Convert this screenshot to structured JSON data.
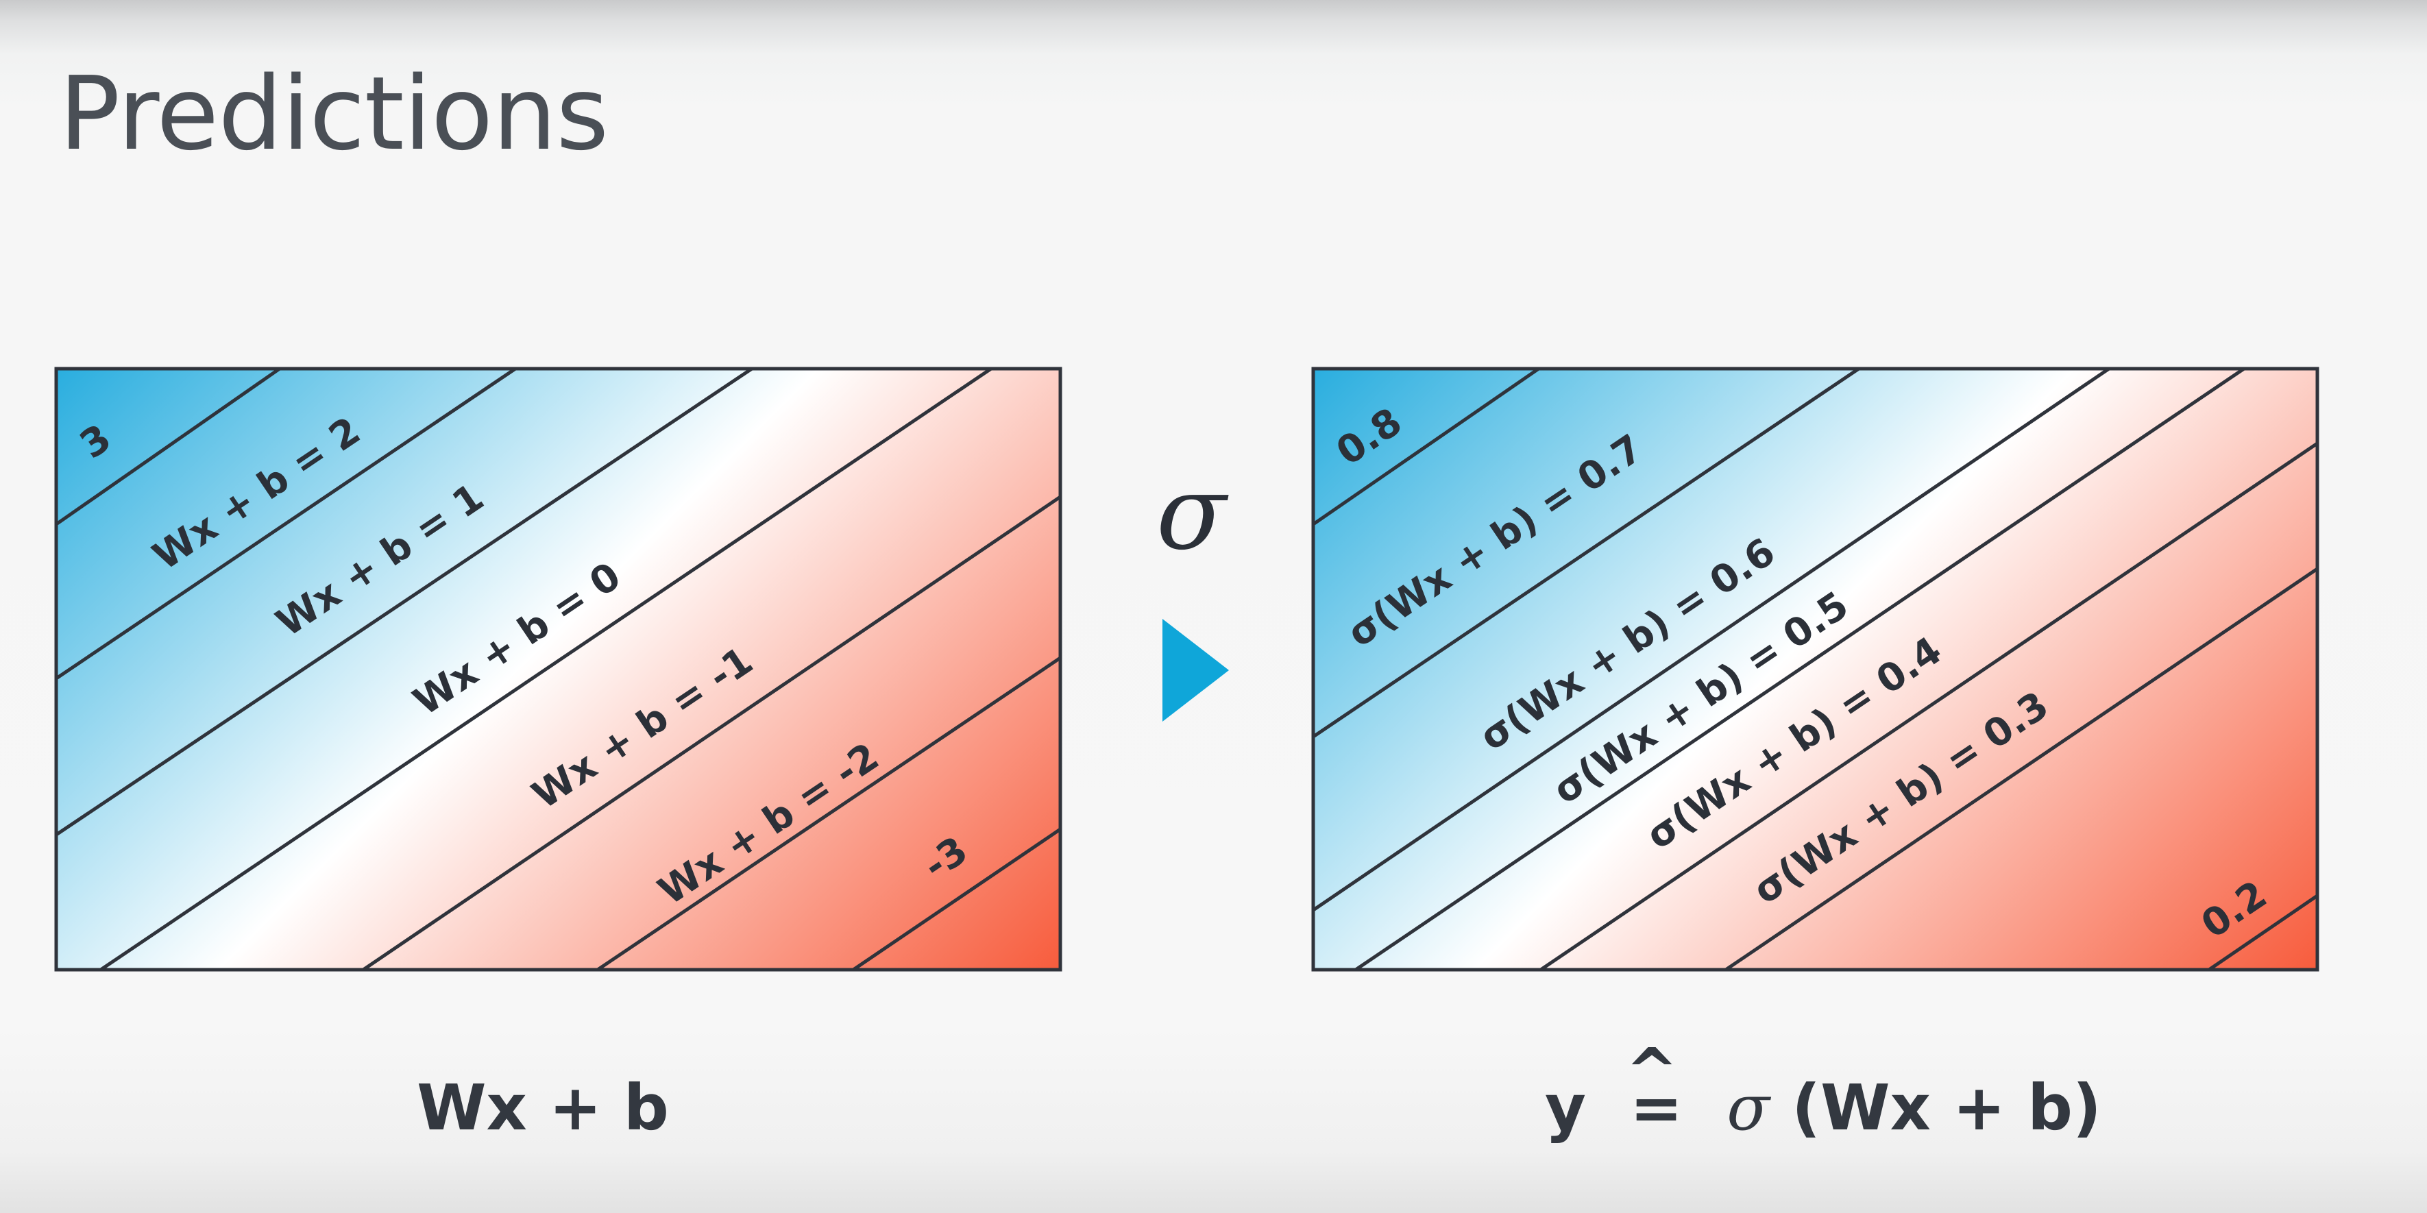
{
  "title": "Predictions",
  "colors": {
    "blue": "#10a4db",
    "white": "#ffffff",
    "red": "#f75a3a",
    "line": "#2f333b",
    "arrow": "#0fa6d9"
  },
  "operator": {
    "symbol": "σ",
    "arrow_icon": "play-triangle-icon"
  },
  "left_panel": {
    "caption": "Wx + b",
    "corner_top": "3",
    "corner_bottom": "-3",
    "lines": [
      {
        "label": "Wx + b = 2"
      },
      {
        "label": "Wx + b = 1"
      },
      {
        "label": "Wx + b = 0"
      },
      {
        "label": "Wx + b = -1"
      },
      {
        "label": "Wx + b = -2"
      }
    ]
  },
  "right_panel": {
    "caption_hat": "^",
    "caption_y": "y",
    "caption_eq": " = ",
    "caption_sigma": "σ",
    "caption_args": "(Wx + b)",
    "corner_top": "0.8",
    "corner_bottom": "0.2",
    "lines": [
      {
        "label": "σ(Wx + b) = 0.7"
      },
      {
        "label": "σ(Wx + b) = 0.6"
      },
      {
        "label": "σ(Wx + b) = 0.5"
      },
      {
        "label": "σ(Wx + b) = 0.4"
      },
      {
        "label": "σ(Wx + b) = 0.3"
      }
    ]
  }
}
